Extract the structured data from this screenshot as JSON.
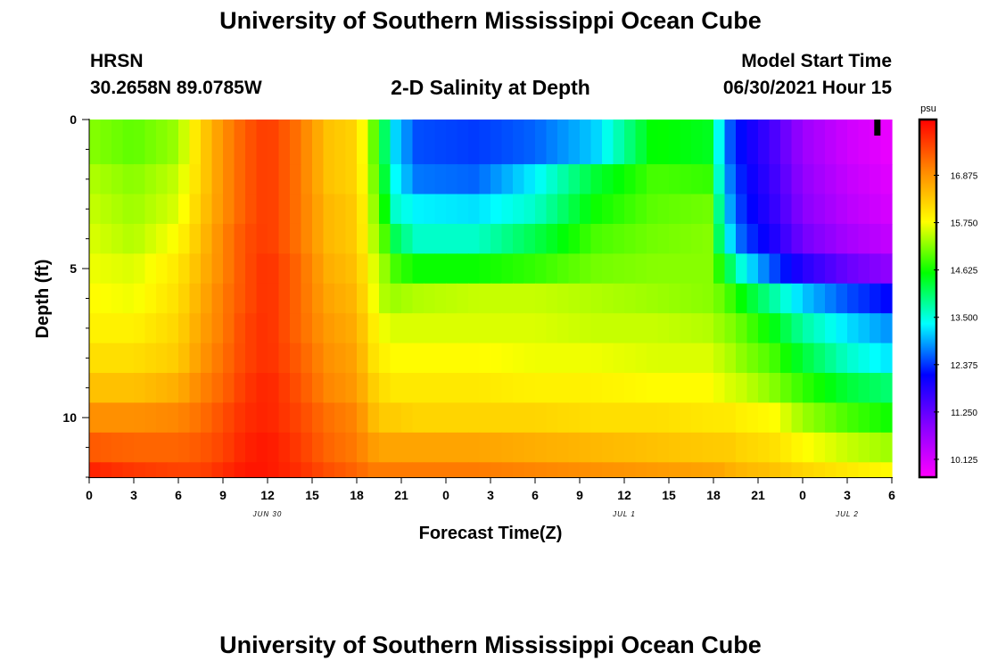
{
  "page": {
    "title": "University of Southern Mississippi Ocean Cube",
    "footer_title": "University of Southern Mississippi Ocean Cube",
    "station": "HRSN",
    "location": "30.2658N  89.0785W",
    "plot_title": "2-D Salinity at Depth",
    "model_start_label": "Model Start Time",
    "model_start_value": "06/30/2021 Hour 15"
  },
  "chart_data": {
    "type": "heatmap",
    "title": "2-D Salinity at Depth",
    "xlabel": "Forecast Time(Z)",
    "ylabel": "Depth (ft)",
    "x_range_hours": [
      0,
      54
    ],
    "ylim": [
      0,
      12
    ],
    "y_inverted": true,
    "x_tick_hours": [
      0,
      3,
      6,
      9,
      12,
      15,
      18,
      21,
      24,
      27,
      30,
      33,
      36,
      39,
      42,
      45,
      48,
      51,
      54
    ],
    "x_tick_labels": [
      "0",
      "3",
      "6",
      "9",
      "12",
      "15",
      "18",
      "21",
      "0",
      "3",
      "6",
      "9",
      "12",
      "15",
      "18",
      "21",
      "0",
      "3",
      "6"
    ],
    "y_ticks": [
      0,
      5,
      10
    ],
    "y_tick_labels": [
      "0",
      "5",
      "10"
    ],
    "date_labels": [
      {
        "hour": 12,
        "text": "JUN 30"
      },
      {
        "hour": 36,
        "text": "JUL 1"
      },
      {
        "hour": 51,
        "text": "JUL 2"
      }
    ],
    "colorbar": {
      "unit": "psu",
      "range": [
        9.7,
        18.2
      ],
      "tick_values": [
        10.125,
        11.25,
        12.375,
        13.5,
        14.625,
        15.75,
        16.875
      ],
      "tick_labels": [
        "10.125",
        "11.250",
        "12.375",
        "13.500",
        "14.625",
        "15.750",
        "16.875"
      ],
      "colors": [
        "#ff00ff",
        "#8800ff",
        "#0000ff",
        "#00ffff",
        "#00ff00",
        "#ffff00",
        "#ff8800",
        "#ff0000"
      ]
    },
    "depth_layers_ft": [
      0,
      1.5,
      2.5,
      3.5,
      4.5,
      5.5,
      6.5,
      7.5,
      8.5,
      9.5,
      10.5,
      11.5,
      12
    ],
    "time_knots_hours": [
      0,
      3,
      6,
      7.5,
      9,
      10.5,
      12,
      14,
      16,
      18,
      19,
      19.8,
      20.5,
      22,
      26,
      30,
      34,
      38,
      42,
      42.3,
      43,
      44,
      46,
      48,
      51,
      54
    ],
    "salinity_psu_by_layer": [
      [
        15.2,
        15.0,
        15.3,
        16.2,
        16.9,
        17.4,
        17.7,
        17.2,
        16.4,
        16.2,
        15.2,
        14.2,
        13.2,
        12.5,
        12.4,
        12.6,
        13.1,
        14.6,
        14.4,
        13.5,
        12.6,
        12.1,
        11.5,
        10.7,
        10.2,
        9.9
      ],
      [
        15.4,
        15.2,
        15.5,
        16.2,
        16.9,
        17.4,
        17.7,
        17.2,
        16.4,
        16.2,
        15.3,
        14.4,
        13.4,
        12.7,
        12.6,
        13.3,
        14.3,
        14.9,
        14.8,
        13.7,
        12.8,
        12.2,
        11.6,
        10.8,
        10.3,
        10.0
      ],
      [
        15.5,
        15.3,
        15.6,
        16.3,
        16.9,
        17.4,
        17.7,
        17.2,
        16.5,
        16.3,
        15.4,
        14.7,
        13.6,
        13.3,
        13.2,
        13.6,
        14.6,
        15.0,
        15.1,
        14.0,
        13.0,
        12.3,
        11.7,
        10.9,
        10.4,
        10.1
      ],
      [
        15.6,
        15.4,
        15.8,
        16.4,
        17.0,
        17.5,
        17.7,
        17.2,
        16.5,
        16.3,
        15.5,
        15.0,
        14.2,
        13.6,
        13.6,
        14.2,
        14.9,
        15.1,
        15.2,
        14.2,
        13.3,
        12.5,
        11.9,
        11.1,
        10.6,
        10.3
      ],
      [
        15.7,
        15.6,
        16.0,
        16.5,
        17.0,
        17.5,
        17.8,
        17.3,
        16.6,
        16.4,
        15.7,
        15.3,
        14.9,
        14.6,
        14.6,
        14.8,
        15.1,
        15.2,
        15.2,
        14.8,
        14.2,
        13.4,
        12.5,
        11.8,
        11.2,
        10.8
      ],
      [
        15.8,
        15.7,
        16.1,
        16.6,
        17.1,
        17.5,
        17.8,
        17.3,
        16.7,
        16.5,
        15.8,
        15.4,
        15.3,
        15.4,
        15.5,
        15.5,
        15.4,
        15.3,
        15.2,
        15.1,
        14.9,
        14.5,
        13.8,
        13.1,
        12.5,
        12.1
      ],
      [
        15.9,
        15.9,
        16.2,
        16.7,
        17.1,
        17.6,
        17.8,
        17.3,
        16.8,
        16.6,
        16.0,
        15.7,
        15.6,
        15.6,
        15.6,
        15.6,
        15.5,
        15.5,
        15.4,
        15.3,
        15.2,
        15.0,
        14.5,
        13.8,
        13.2,
        12.8
      ],
      [
        16.1,
        16.1,
        16.3,
        16.8,
        17.2,
        17.6,
        17.8,
        17.4,
        16.9,
        16.7,
        16.1,
        15.9,
        15.8,
        15.8,
        15.8,
        15.7,
        15.7,
        15.6,
        15.6,
        15.5,
        15.4,
        15.2,
        14.9,
        14.3,
        13.6,
        13.2
      ],
      [
        16.4,
        16.4,
        16.6,
        17.0,
        17.3,
        17.7,
        17.9,
        17.5,
        17.0,
        16.8,
        16.3,
        16.1,
        16.0,
        16.0,
        16.0,
        15.9,
        15.9,
        15.8,
        15.8,
        15.7,
        15.6,
        15.5,
        15.2,
        14.8,
        14.3,
        14.0
      ],
      [
        16.9,
        16.9,
        17.0,
        17.2,
        17.5,
        17.8,
        17.9,
        17.6,
        17.2,
        17.0,
        16.5,
        16.3,
        16.3,
        16.2,
        16.2,
        16.2,
        16.1,
        16.1,
        16.0,
        16.0,
        16.0,
        15.9,
        15.8,
        15.3,
        14.9,
        14.6
      ],
      [
        17.4,
        17.3,
        17.3,
        17.4,
        17.6,
        17.9,
        18.0,
        17.7,
        17.3,
        17.1,
        16.8,
        16.7,
        16.7,
        16.7,
        16.7,
        16.6,
        16.5,
        16.4,
        16.3,
        16.3,
        16.3,
        16.2,
        16.1,
        15.8,
        15.5,
        15.3
      ],
      [
        17.9,
        17.7,
        17.6,
        17.6,
        17.8,
        18.0,
        18.0,
        17.8,
        17.5,
        17.3,
        17.1,
        17.1,
        17.1,
        17.1,
        17.1,
        17.0,
        16.9,
        16.8,
        16.7,
        16.7,
        16.6,
        16.5,
        16.4,
        16.2,
        16.0,
        15.8
      ]
    ],
    "marker": {
      "label": "current time",
      "hour": 53
    }
  }
}
